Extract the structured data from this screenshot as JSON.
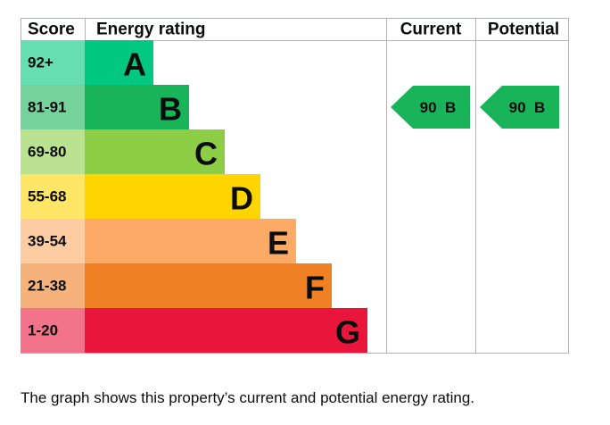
{
  "header": {
    "score": "Score",
    "energy_rating": "Energy rating",
    "current": "Current",
    "potential": "Potential"
  },
  "bands": [
    {
      "score": "92+",
      "letter": "A",
      "color": "#00c781"
    },
    {
      "score": "81-91",
      "letter": "B",
      "color": "#19b459"
    },
    {
      "score": "69-80",
      "letter": "C",
      "color": "#8dce46"
    },
    {
      "score": "55-68",
      "letter": "D",
      "color": "#ffd500"
    },
    {
      "score": "39-54",
      "letter": "E",
      "color": "#fcaa65"
    },
    {
      "score": "21-38",
      "letter": "F",
      "color": "#ef8023"
    },
    {
      "score": "1-20",
      "letter": "G",
      "color": "#e9153b"
    }
  ],
  "current": {
    "score": 90,
    "letter": "B"
  },
  "potential": {
    "score": 90,
    "letter": "B"
  },
  "caption": "The graph shows this property’s current and potential energy rating."
}
